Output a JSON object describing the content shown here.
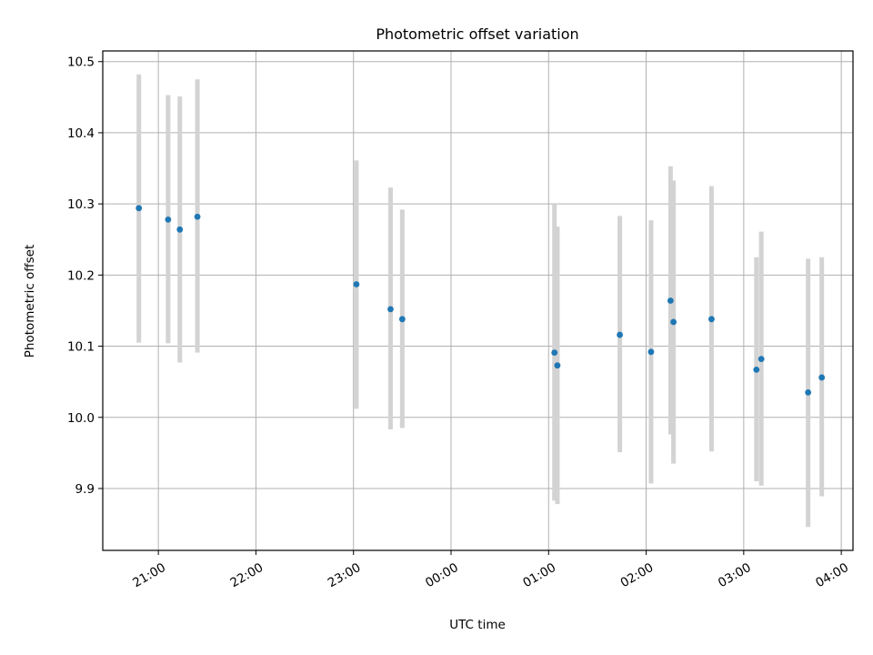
{
  "chart_data": {
    "type": "scatter",
    "title": "Photometric offset variation",
    "xlabel": "UTC time",
    "ylabel": "Photometric offset",
    "x_unit": "hour of day (UTC), continuing past midnight as 24+",
    "xlim": [
      20.43,
      28.12
    ],
    "ylim": [
      9.813,
      10.515
    ],
    "x_ticks": [
      {
        "value": 21,
        "label": "21:00"
      },
      {
        "value": 22,
        "label": "22:00"
      },
      {
        "value": 23,
        "label": "23:00"
      },
      {
        "value": 24,
        "label": "00:00"
      },
      {
        "value": 25,
        "label": "01:00"
      },
      {
        "value": 26,
        "label": "02:00"
      },
      {
        "value": 27,
        "label": "03:00"
      },
      {
        "value": 28,
        "label": "04:00"
      }
    ],
    "y_ticks": [
      {
        "value": 9.9,
        "label": "9.9"
      },
      {
        "value": 10.0,
        "label": "10.0"
      },
      {
        "value": 10.1,
        "label": "10.1"
      },
      {
        "value": 10.2,
        "label": "10.2"
      },
      {
        "value": 10.3,
        "label": "10.3"
      },
      {
        "value": 10.4,
        "label": "10.4"
      },
      {
        "value": 10.5,
        "label": "10.5"
      }
    ],
    "grid": true,
    "legend": "none",
    "marker_color": "#1f77b4",
    "errorbar_color": "#d3d3d3",
    "points": [
      {
        "x": 20.8,
        "y": 10.294,
        "low": 10.105,
        "high": 10.482
      },
      {
        "x": 21.1,
        "y": 10.278,
        "low": 10.104,
        "high": 10.453
      },
      {
        "x": 21.22,
        "y": 10.264,
        "low": 10.077,
        "high": 10.451
      },
      {
        "x": 21.4,
        "y": 10.282,
        "low": 10.091,
        "high": 10.475
      },
      {
        "x": 23.03,
        "y": 10.187,
        "low": 10.012,
        "high": 10.361
      },
      {
        "x": 23.38,
        "y": 10.152,
        "low": 9.983,
        "high": 10.323
      },
      {
        "x": 23.5,
        "y": 10.138,
        "low": 9.985,
        "high": 10.292
      },
      {
        "x": 25.06,
        "y": 10.091,
        "low": 9.883,
        "high": 10.3
      },
      {
        "x": 25.09,
        "y": 10.073,
        "low": 9.878,
        "high": 10.268
      },
      {
        "x": 25.73,
        "y": 10.116,
        "low": 9.951,
        "high": 10.283
      },
      {
        "x": 26.05,
        "y": 10.092,
        "low": 9.907,
        "high": 10.277
      },
      {
        "x": 26.25,
        "y": 10.164,
        "low": 9.976,
        "high": 10.353
      },
      {
        "x": 26.28,
        "y": 10.134,
        "low": 9.935,
        "high": 10.333
      },
      {
        "x": 26.67,
        "y": 10.138,
        "low": 9.952,
        "high": 10.325
      },
      {
        "x": 27.13,
        "y": 10.067,
        "low": 9.91,
        "high": 10.225
      },
      {
        "x": 27.18,
        "y": 10.082,
        "low": 9.904,
        "high": 10.261
      },
      {
        "x": 27.66,
        "y": 10.035,
        "low": 9.846,
        "high": 10.223
      },
      {
        "x": 27.8,
        "y": 10.056,
        "low": 9.889,
        "high": 10.225
      }
    ]
  }
}
